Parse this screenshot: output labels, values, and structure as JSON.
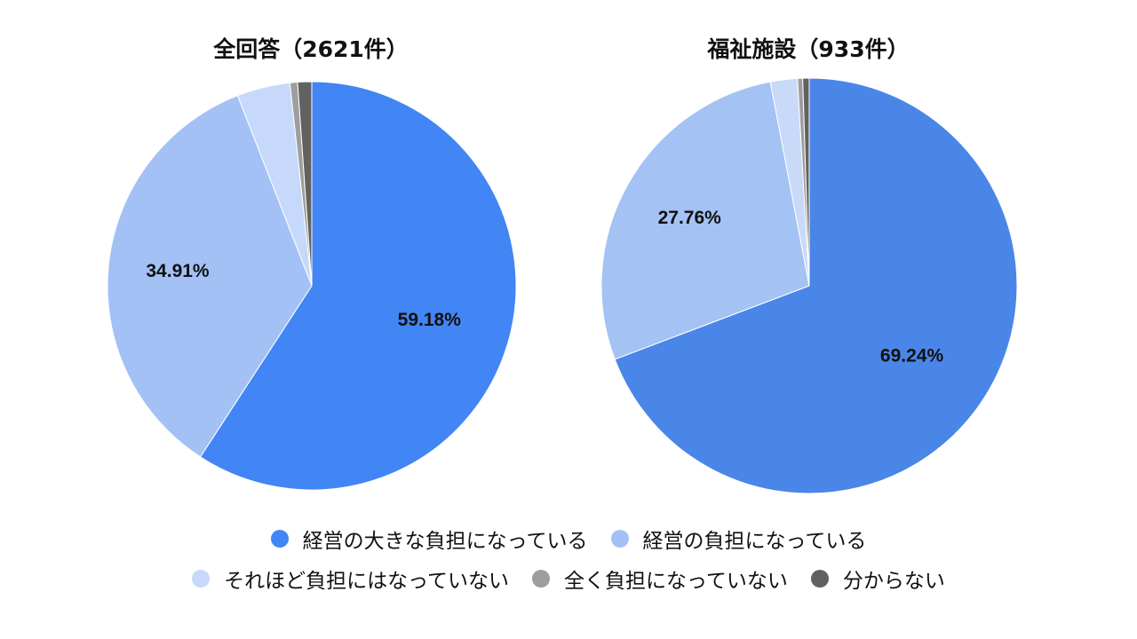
{
  "chart_data": [
    {
      "type": "pie",
      "title": "全回答（2621件）",
      "slices": [
        {
          "category": "経営の大きな負担になっている",
          "value": 59.18,
          "label": "59.18%",
          "color": "#4285f4"
        },
        {
          "category": "経営の負担になっている",
          "value": 34.91,
          "label": "34.91%",
          "color": "#a3c1f5"
        },
        {
          "category": "それほど負担にはなっていない",
          "value": 4.2,
          "label": "",
          "color": "#c6d9fa"
        },
        {
          "category": "全く負担になっていない",
          "value": 0.6,
          "label": "",
          "color": "#9e9e9e"
        },
        {
          "category": "分からない",
          "value": 1.11,
          "label": "",
          "color": "#616161"
        }
      ]
    },
    {
      "type": "pie",
      "title": "福祉施設（933件）",
      "slices": [
        {
          "category": "経営の大きな負担になっている",
          "value": 69.24,
          "label": "69.24%",
          "color": "#4a86e8"
        },
        {
          "category": "経営の負担になっている",
          "value": 27.76,
          "label": "27.76%",
          "color": "#a4c2f4"
        },
        {
          "category": "それほど負担にはなっていない",
          "value": 2.1,
          "label": "",
          "color": "#c9daf8"
        },
        {
          "category": "全く負担になっていない",
          "value": 0.4,
          "label": "",
          "color": "#9e9e9e"
        },
        {
          "category": "分からない",
          "value": 0.5,
          "label": "",
          "color": "#616161"
        }
      ]
    }
  ],
  "legend": {
    "items": [
      {
        "label": "経営の大きな負担になっている",
        "color": "#4285f4"
      },
      {
        "label": "経営の負担になっている",
        "color": "#a3c1f5"
      },
      {
        "label": "それほど負担にはなっていない",
        "color": "#c6d9fa"
      },
      {
        "label": "全く負担になっていない",
        "color": "#9e9e9e"
      },
      {
        "label": "分からない",
        "color": "#616161"
      }
    ]
  }
}
